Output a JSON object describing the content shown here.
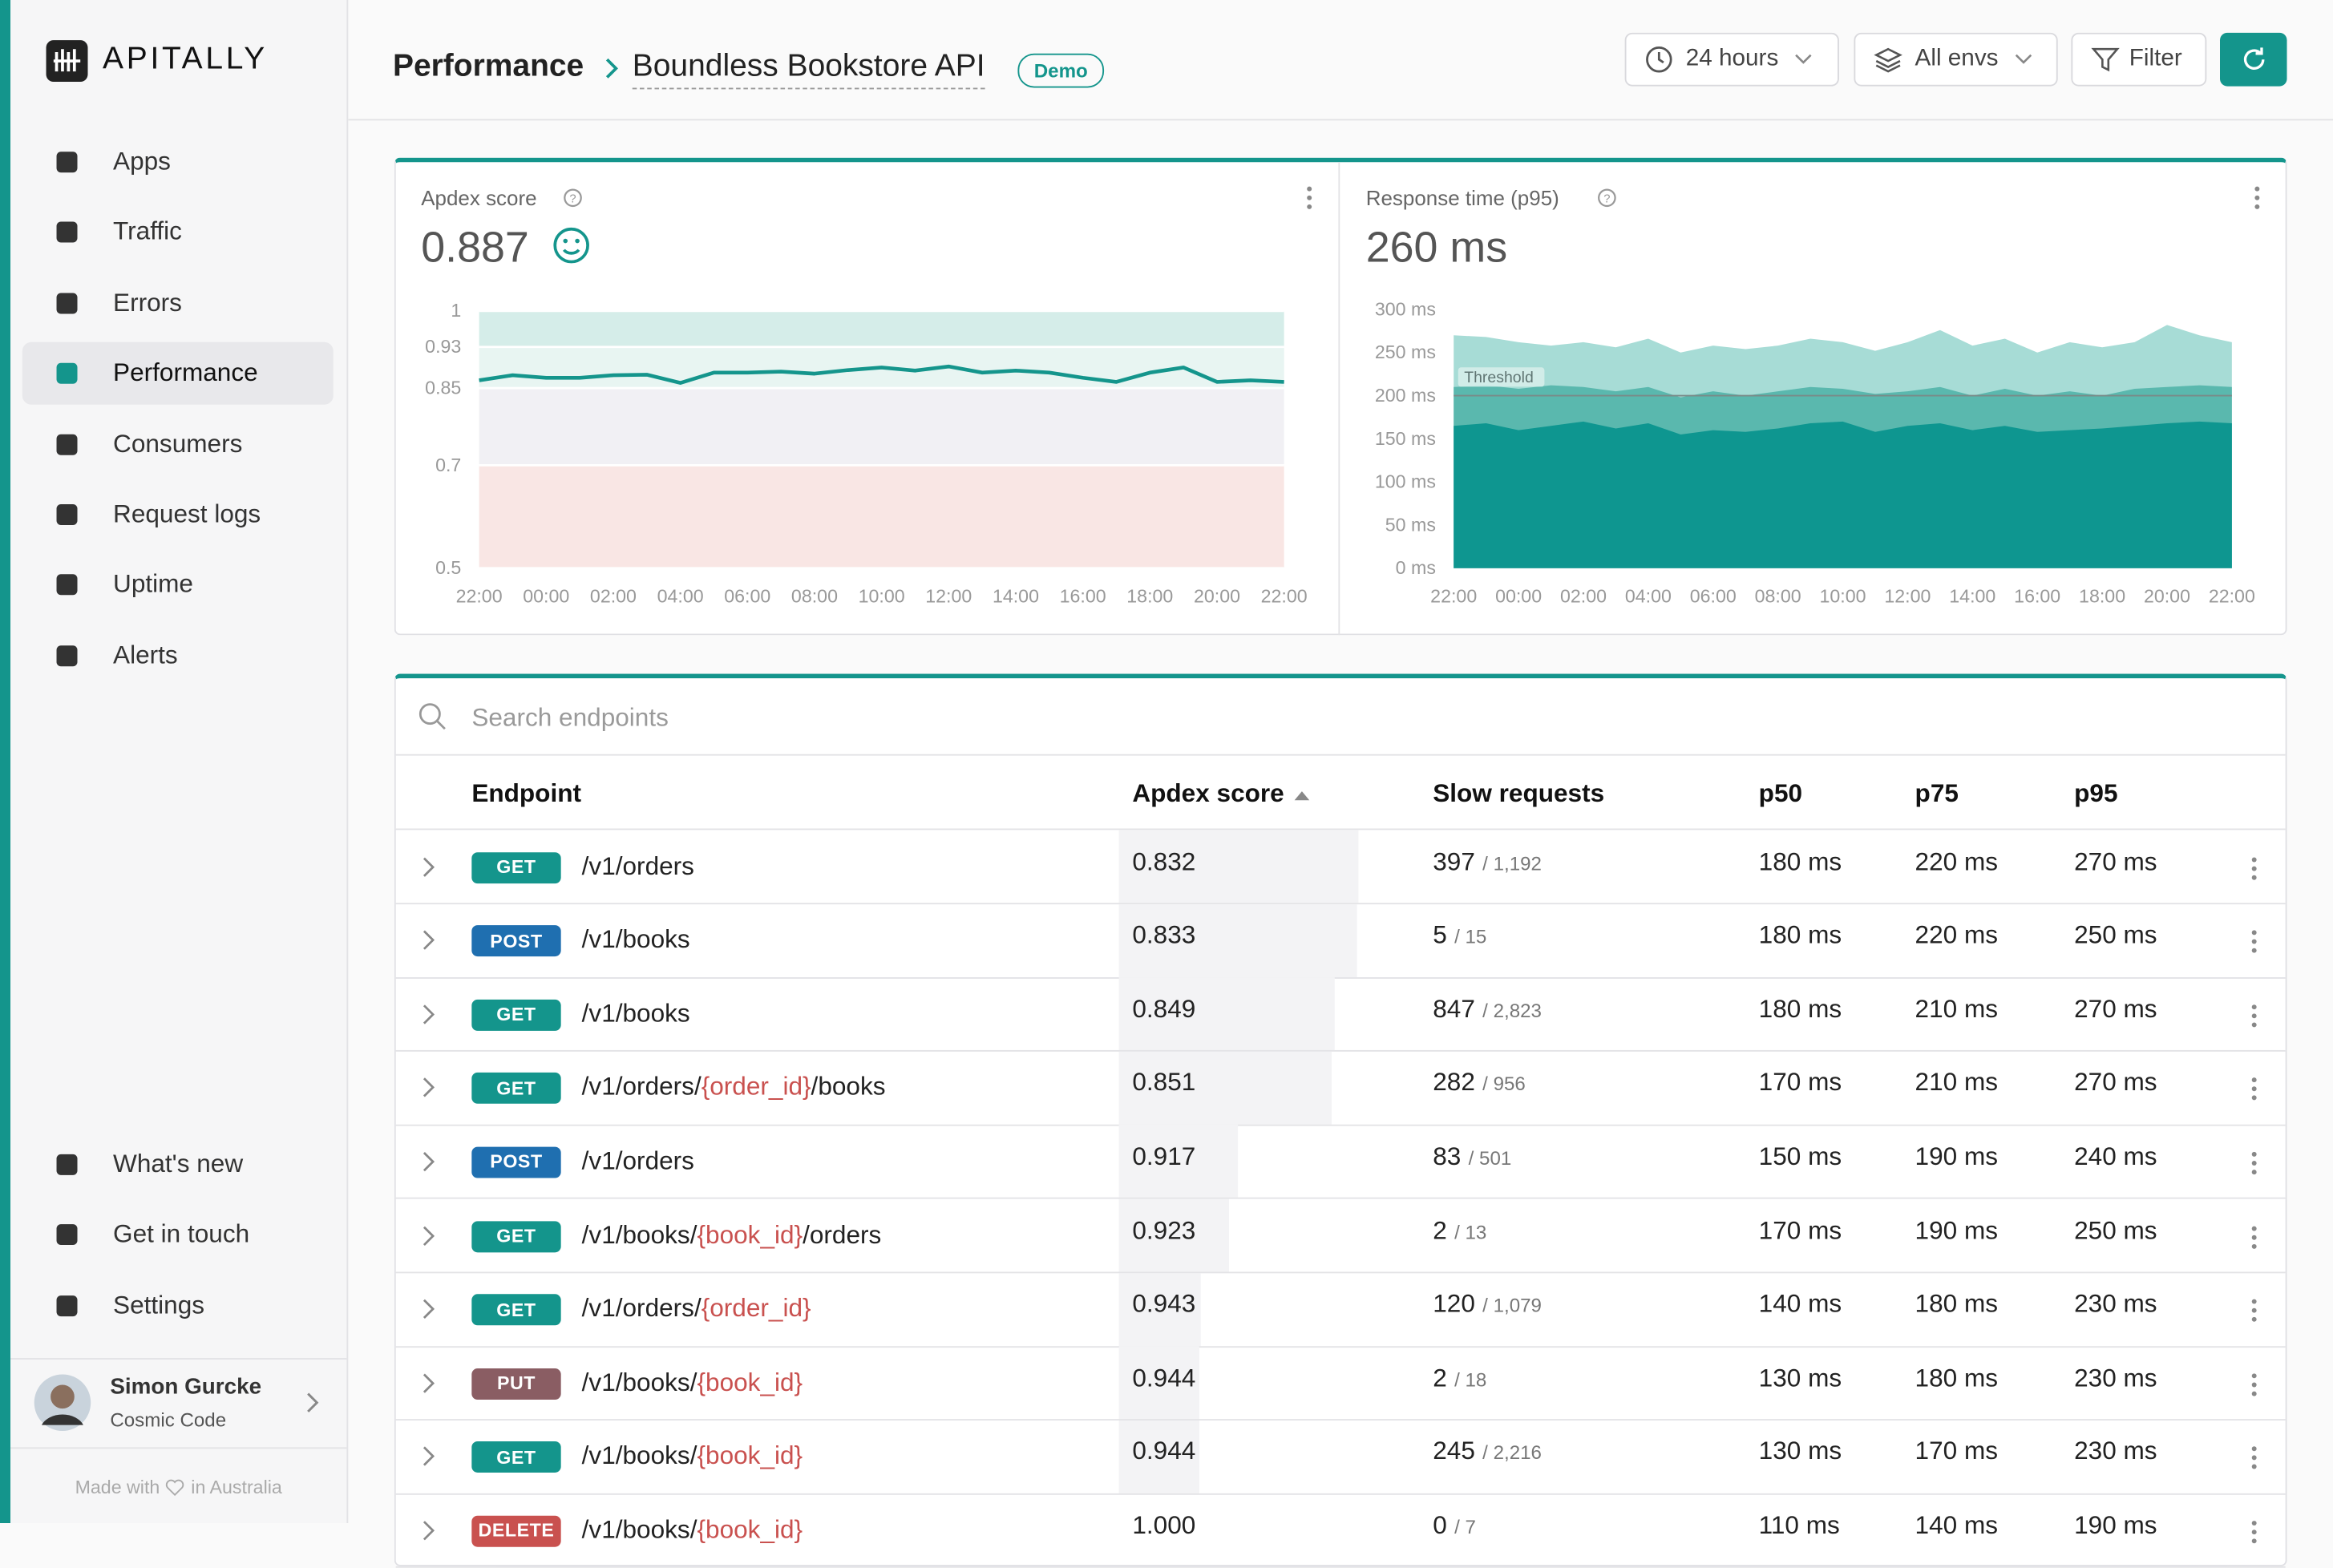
{
  "sidebar": {
    "logo": "APITALLY",
    "nav": [
      "Apps",
      "Traffic",
      "Errors",
      "Performance",
      "Consumers",
      "Request logs",
      "Uptime",
      "Alerts"
    ],
    "active_index": 3,
    "bottom_nav": [
      "What's new",
      "Get in touch",
      "Settings"
    ],
    "user": {
      "name": "Simon Gurcke",
      "company": "Cosmic Code"
    },
    "footer": [
      "Made with",
      "in Australia"
    ]
  },
  "header": {
    "section": "Performance",
    "app": "Boundless Bookstore API",
    "badge": "Demo",
    "buttons": [
      "24 hours",
      "All envs",
      "Filter"
    ]
  },
  "chart_data": [
    {
      "type": "line",
      "title": "Apdex score",
      "summary": "0.887",
      "categories": [
        "22:00",
        null,
        "00:00",
        null,
        "02:00",
        null,
        "04:00",
        null,
        "06:00",
        null,
        "08:00",
        null,
        "10:00",
        null,
        "12:00",
        null,
        "14:00",
        null,
        "16:00",
        null,
        "18:00",
        null,
        "20:00",
        null,
        "22:00"
      ],
      "values": [
        0.865,
        0.875,
        0.87,
        0.87,
        0.875,
        0.876,
        0.86,
        0.88,
        0.88,
        0.882,
        0.878,
        0.885,
        0.89,
        0.884,
        0.892,
        0.88,
        0.884,
        0.88,
        0.87,
        0.862,
        0.88,
        0.89,
        0.862,
        0.865,
        0.862
      ],
      "color": "#14958c",
      "ylim": [
        0.5,
        1
      ],
      "yticks": [
        1,
        0.93,
        0.85,
        0.7,
        0.5
      ],
      "band_colors": [
        "#d5ede9",
        "#e8f5f2",
        "#f1f0f4",
        "#f9e6e4"
      ]
    },
    {
      "type": "area",
      "title": "Response time (p95)",
      "summary": "260 ms",
      "categories": [
        "22:00",
        null,
        "00:00",
        null,
        "02:00",
        null,
        "04:00",
        null,
        "06:00",
        null,
        "08:00",
        null,
        "10:00",
        null,
        "12:00",
        null,
        "14:00",
        null,
        "16:00",
        null,
        "18:00",
        null,
        "20:00",
        null,
        "22:00"
      ],
      "series": [
        {
          "name": "p95",
          "color": "#a7dcd6",
          "values": [
            270,
            268,
            262,
            258,
            262,
            256,
            266,
            250,
            258,
            254,
            258,
            266,
            262,
            252,
            262,
            276,
            258,
            266,
            250,
            262,
            256,
            262,
            282,
            270,
            262
          ]
        },
        {
          "name": "p75",
          "color": "#5ab8ae",
          "values": [
            210,
            212,
            208,
            212,
            210,
            205,
            210,
            198,
            205,
            200,
            205,
            210,
            208,
            202,
            205,
            210,
            200,
            208,
            200,
            205,
            200,
            208,
            210,
            212,
            210
          ]
        },
        {
          "name": "p50",
          "color": "#0e9690",
          "values": [
            165,
            168,
            160,
            165,
            170,
            162,
            168,
            155,
            160,
            158,
            162,
            168,
            170,
            158,
            165,
            168,
            160,
            165,
            158,
            160,
            162,
            165,
            168,
            170,
            168
          ]
        }
      ],
      "threshold": {
        "label": "Threshold",
        "value": 200
      },
      "ylim": [
        0,
        300
      ],
      "yticks": [
        {
          "value": 300,
          "label": "300 ms"
        },
        {
          "value": 250,
          "label": "250 ms"
        },
        {
          "value": 200,
          "label": "200 ms"
        },
        {
          "value": 150,
          "label": "150 ms"
        },
        {
          "value": 100,
          "label": "100 ms"
        },
        {
          "value": 50,
          "label": "50 ms"
        },
        {
          "value": 0,
          "label": "0 ms"
        }
      ]
    }
  ],
  "table": {
    "search_placeholder": "Search endpoints",
    "columns": [
      "Endpoint",
      "Apdex score",
      "Slow requests",
      "p50",
      "p75",
      "p95"
    ],
    "method_colors": {
      "GET": "#14958c",
      "POST": "#1f6fb0",
      "PUT": "#8a5d63",
      "DELETE": "#c9514f"
    },
    "rows": [
      {
        "method": "GET",
        "endpoint": [
          {
            "text": "/v1/orders"
          }
        ],
        "apdex": "0.832",
        "slow": "397",
        "total": "/ 1,192",
        "p50": "180 ms",
        "p75": "220 ms",
        "p95": "270 ms"
      },
      {
        "method": "POST",
        "endpoint": [
          {
            "text": "/v1/books"
          }
        ],
        "apdex": "0.833",
        "slow": "5",
        "total": "/ 15",
        "p50": "180 ms",
        "p75": "220 ms",
        "p95": "250 ms"
      },
      {
        "method": "GET",
        "endpoint": [
          {
            "text": "/v1/books"
          }
        ],
        "apdex": "0.849",
        "slow": "847",
        "total": "/ 2,823",
        "p50": "180 ms",
        "p75": "210 ms",
        "p95": "270 ms"
      },
      {
        "method": "GET",
        "endpoint": [
          {
            "text": "/v1/orders/"
          },
          {
            "text": "{order_id}",
            "param": true
          },
          {
            "text": "/books"
          }
        ],
        "apdex": "0.851",
        "slow": "282",
        "total": "/ 956",
        "p50": "170 ms",
        "p75": "210 ms",
        "p95": "270 ms"
      },
      {
        "method": "POST",
        "endpoint": [
          {
            "text": "/v1/orders"
          }
        ],
        "apdex": "0.917",
        "slow": "83",
        "total": "/ 501",
        "p50": "150 ms",
        "p75": "190 ms",
        "p95": "240 ms"
      },
      {
        "method": "GET",
        "endpoint": [
          {
            "text": "/v1/books/"
          },
          {
            "text": "{book_id}",
            "param": true
          },
          {
            "text": "/orders"
          }
        ],
        "apdex": "0.923",
        "slow": "2",
        "total": "/ 13",
        "p50": "170 ms",
        "p75": "190 ms",
        "p95": "250 ms"
      },
      {
        "method": "GET",
        "endpoint": [
          {
            "text": "/v1/orders/"
          },
          {
            "text": "{order_id}",
            "param": true
          }
        ],
        "apdex": "0.943",
        "slow": "120",
        "total": "/ 1,079",
        "p50": "140 ms",
        "p75": "180 ms",
        "p95": "230 ms"
      },
      {
        "method": "PUT",
        "endpoint": [
          {
            "text": "/v1/books/"
          },
          {
            "text": "{book_id}",
            "param": true
          }
        ],
        "apdex": "0.944",
        "slow": "2",
        "total": "/ 18",
        "p50": "130 ms",
        "p75": "180 ms",
        "p95": "230 ms"
      },
      {
        "method": "GET",
        "endpoint": [
          {
            "text": "/v1/books/"
          },
          {
            "text": "{book_id}",
            "param": true
          }
        ],
        "apdex": "0.944",
        "slow": "245",
        "total": "/ 2,216",
        "p50": "130 ms",
        "p75": "170 ms",
        "p95": "230 ms"
      },
      {
        "method": "DELETE",
        "endpoint": [
          {
            "text": "/v1/books/"
          },
          {
            "text": "{book_id}",
            "param": true
          }
        ],
        "apdex": "1.000",
        "slow": "0",
        "total": "/ 7",
        "p50": "110 ms",
        "p75": "140 ms",
        "p95": "190 ms"
      }
    ]
  }
}
